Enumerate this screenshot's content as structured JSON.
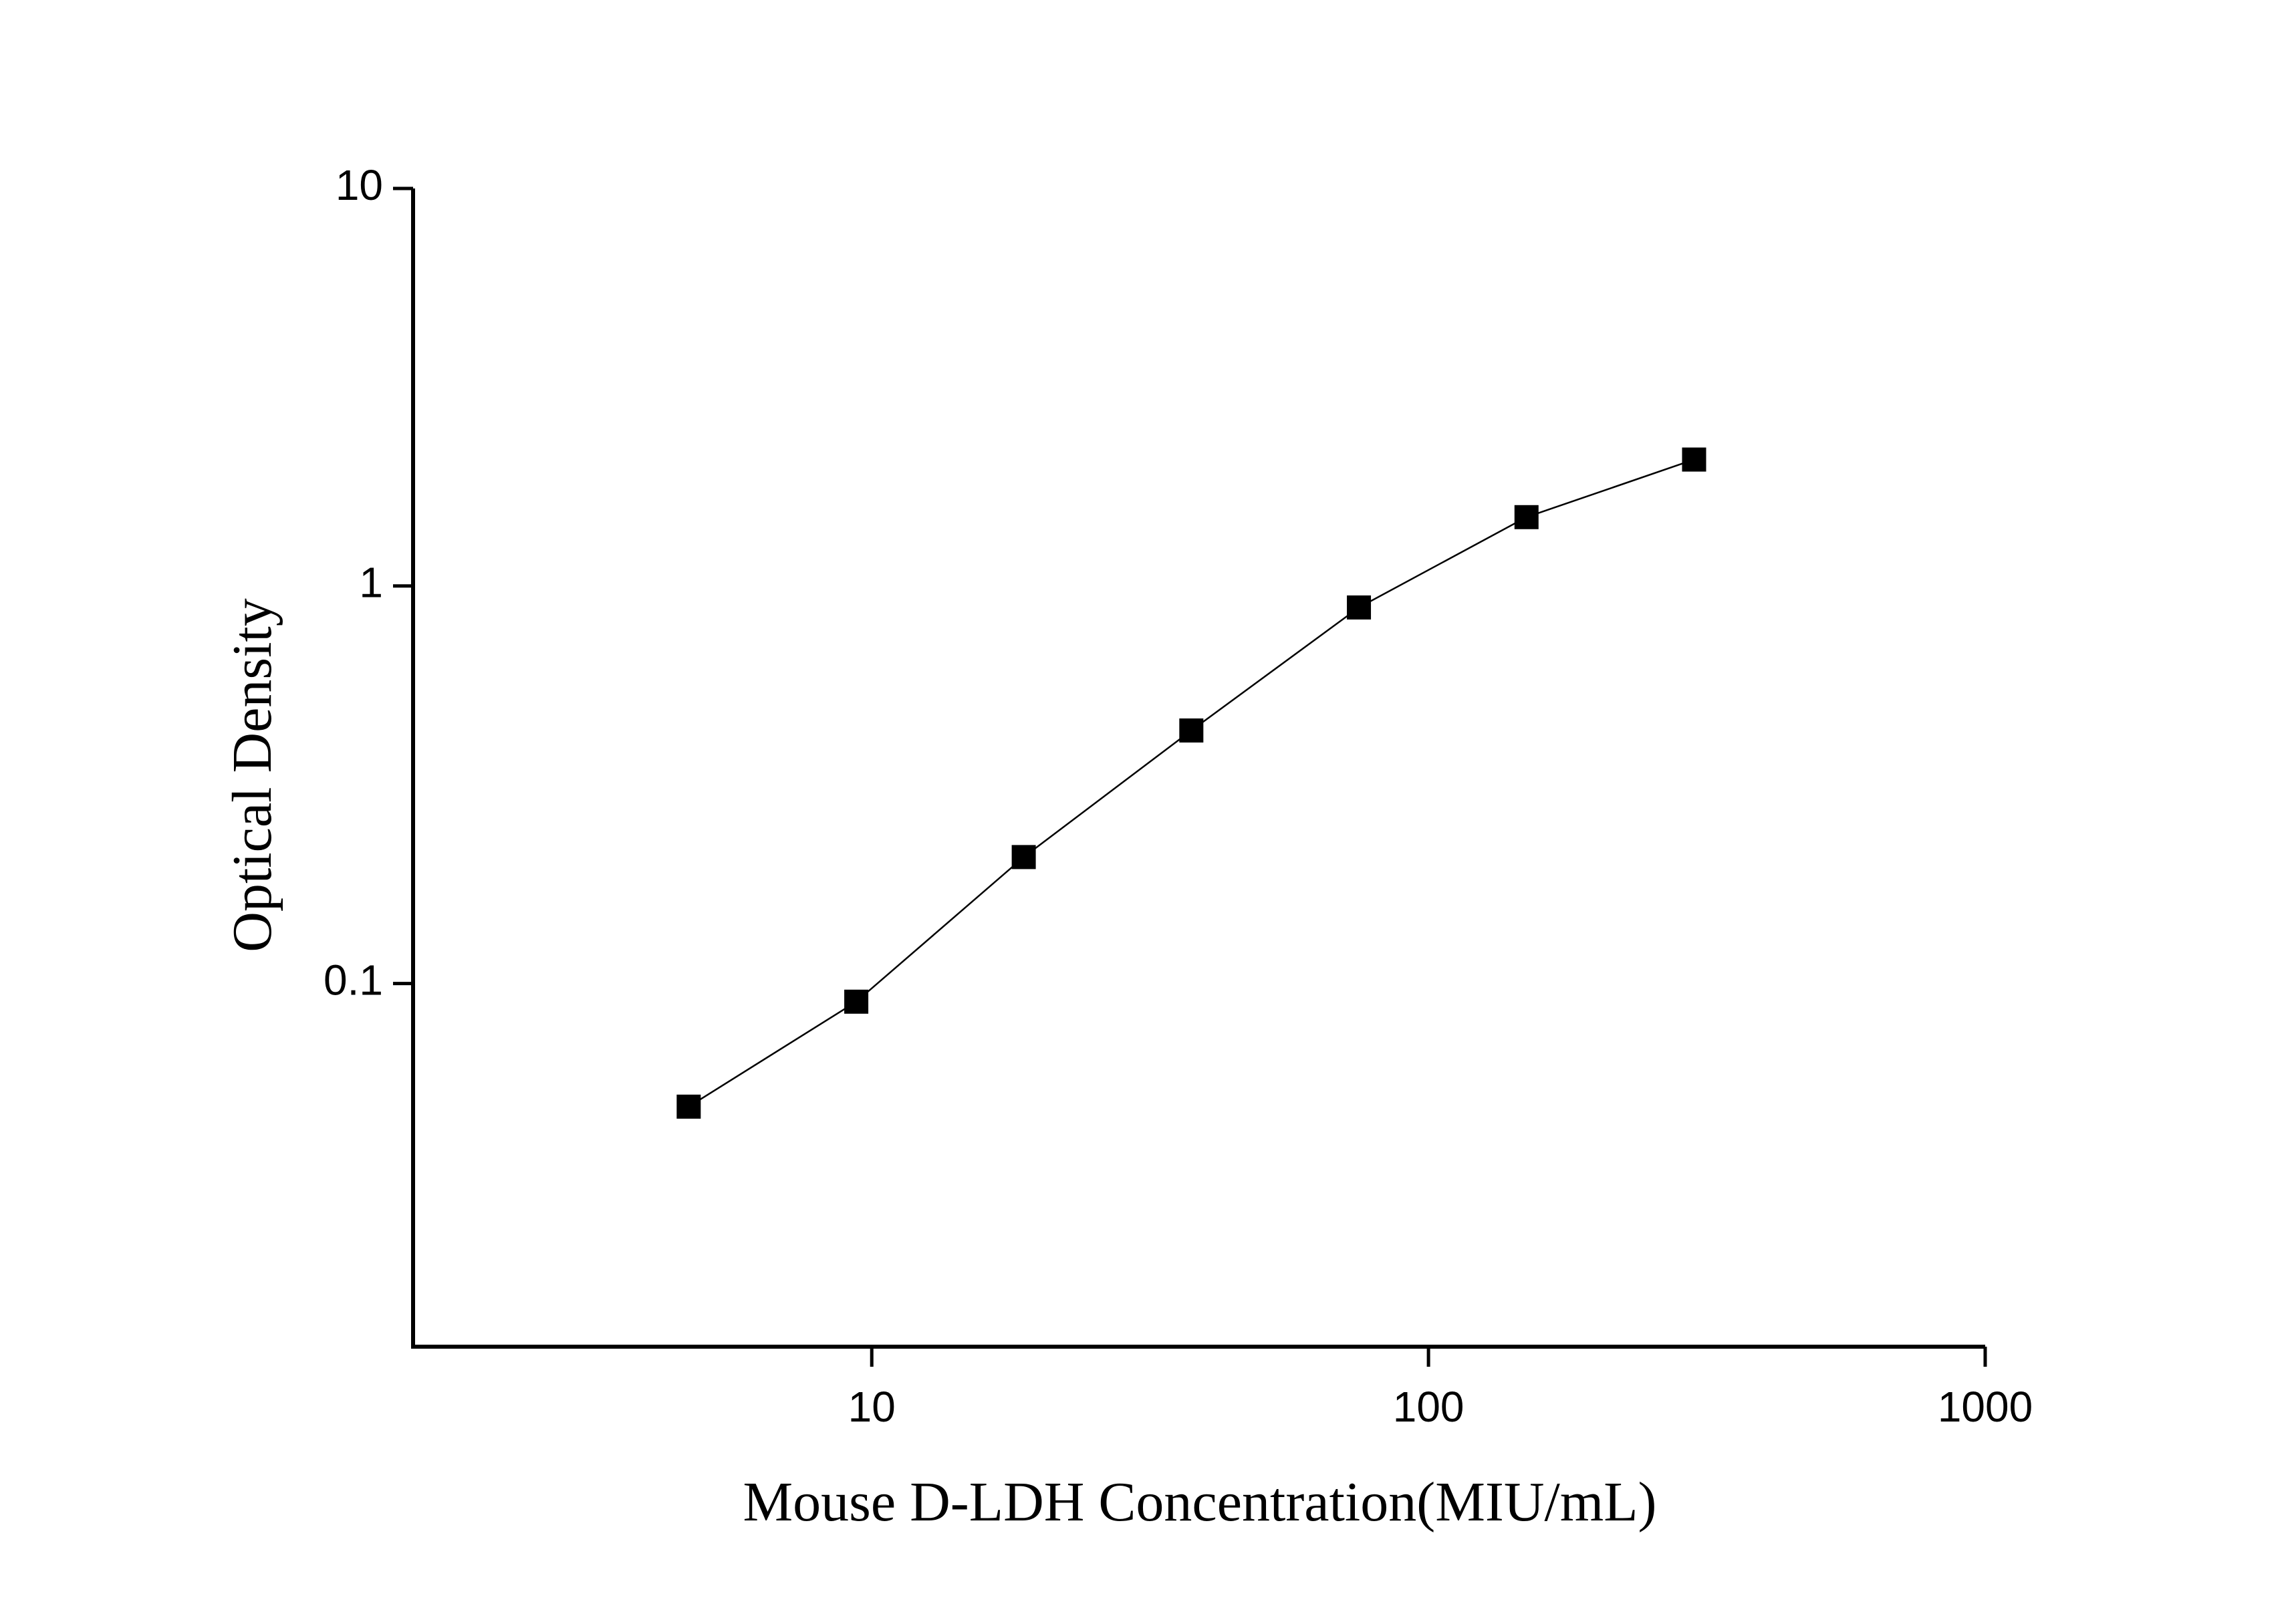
{
  "chart_data": {
    "type": "line",
    "x_label": "Mouse D-LDH Concentration(MIU/mL)",
    "y_label": "Optical Density",
    "x": [
      4.69,
      9.38,
      18.75,
      37.5,
      75,
      150,
      300
    ],
    "series": [
      {
        "color": "#000000",
        "values": [
          0.049,
          0.09,
          0.208,
          0.433,
          0.883,
          1.49,
          2.08
        ]
      }
    ],
    "xlim": [
      1.5,
      1000
    ],
    "xticks": [
      10,
      100,
      1000
    ],
    "ylim": [
      0.0122,
      10
    ],
    "yticks": [
      0.1,
      1,
      10
    ],
    "xscale": "log",
    "yscale": "log",
    "marker": "square"
  }
}
